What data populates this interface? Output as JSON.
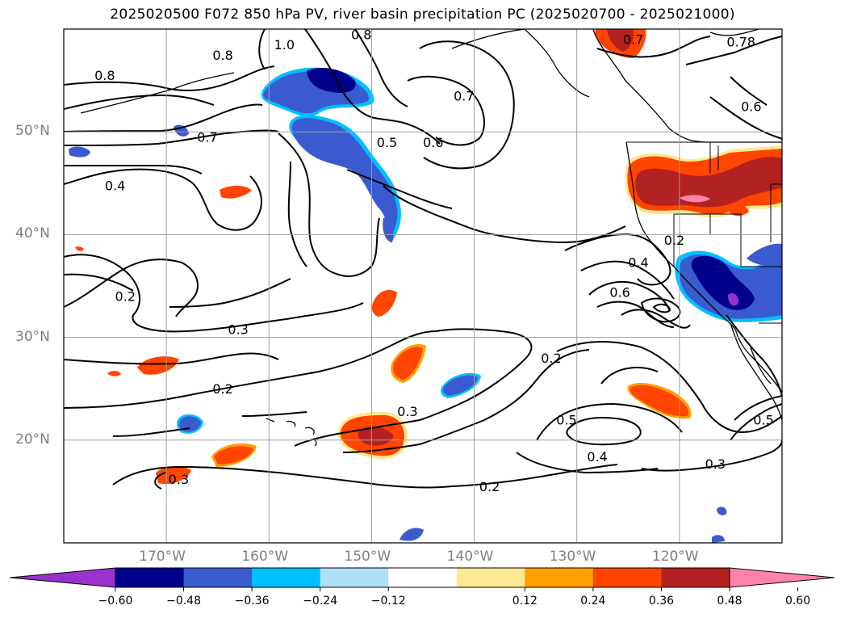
{
  "title": "2025020500 F072 850 hPa PV, river basin precipitation PC (2025020700 - 2025021000)",
  "map": {
    "lon_range": [
      -180,
      -110
    ],
    "lat_range": [
      10,
      60
    ],
    "lat_ticks": [
      {
        "value": 50,
        "label": "50°N"
      },
      {
        "value": 40,
        "label": "40°N"
      },
      {
        "value": 30,
        "label": "30°N"
      },
      {
        "value": 20,
        "label": "20°N"
      }
    ],
    "lon_ticks": [
      {
        "value": -170,
        "label": "170°W"
      },
      {
        "value": -160,
        "label": "160°W"
      },
      {
        "value": -150,
        "label": "150°W"
      },
      {
        "value": -140,
        "label": "140°W"
      },
      {
        "value": -130,
        "label": "130°W"
      },
      {
        "value": -120,
        "label": "120°W"
      }
    ],
    "contour_labels": [
      {
        "text": "0.8",
        "lon": -176,
        "lat": 55.5
      },
      {
        "text": "0.8",
        "lon": -164.5,
        "lat": 57.5
      },
      {
        "text": "0.8",
        "lon": -151,
        "lat": 59.5
      },
      {
        "text": "1.0",
        "lon": -158.5,
        "lat": 58.5
      },
      {
        "text": "0.7",
        "lon": -166,
        "lat": 49.5
      },
      {
        "text": "0.4",
        "lon": -175,
        "lat": 44.8
      },
      {
        "text": "0.5",
        "lon": -148.5,
        "lat": 49
      },
      {
        "text": "0.6",
        "lon": -144,
        "lat": 49
      },
      {
        "text": "0.7",
        "lon": -141,
        "lat": 53.5
      },
      {
        "text": "0.7",
        "lon": -124.5,
        "lat": 59
      },
      {
        "text": "0.78",
        "lon": -114,
        "lat": 58.8
      },
      {
        "text": "0.6",
        "lon": -113,
        "lat": 52.5
      },
      {
        "text": "0.2",
        "lon": -174,
        "lat": 34
      },
      {
        "text": "0.3",
        "lon": -163,
        "lat": 30.8
      },
      {
        "text": "0.2",
        "lon": -164.5,
        "lat": 25
      },
      {
        "text": "0.3",
        "lon": -168.8,
        "lat": 16.2
      },
      {
        "text": "0.2",
        "lon": -120.5,
        "lat": 39.5
      },
      {
        "text": "0.4",
        "lon": -124,
        "lat": 37.3
      },
      {
        "text": "0.6",
        "lon": -125.8,
        "lat": 34.4
      },
      {
        "text": "0.2",
        "lon": -132.5,
        "lat": 28
      },
      {
        "text": "0.3",
        "lon": -146.5,
        "lat": 22.8
      },
      {
        "text": "0.5",
        "lon": -131,
        "lat": 22
      },
      {
        "text": "0.4",
        "lon": -128,
        "lat": 18.4
      },
      {
        "text": "0.3",
        "lon": -116.5,
        "lat": 17.7
      },
      {
        "text": "0.2",
        "lon": -138.5,
        "lat": 15.5
      },
      {
        "text": "0.5",
        "lon": -111.8,
        "lat": 22
      }
    ],
    "contour_color": "#000000",
    "grid_color": "#a0a0a0",
    "tick_label_color": "#7f7f7f"
  },
  "colorbar": {
    "colors": [
      "#9932cc",
      "#00008b",
      "#3a5bcf",
      "#00bfff",
      "#b0e0f5",
      "#ffffff",
      "#fde891",
      "#ff9f00",
      "#ff4500",
      "#b22222",
      "#ff82ab"
    ],
    "tick_labels": [
      "−0.60",
      "−0.48",
      "−0.36",
      "−0.24",
      "−0.12",
      "0.12",
      "0.24",
      "0.36",
      "0.48",
      "0.60"
    ],
    "extend": "both"
  }
}
